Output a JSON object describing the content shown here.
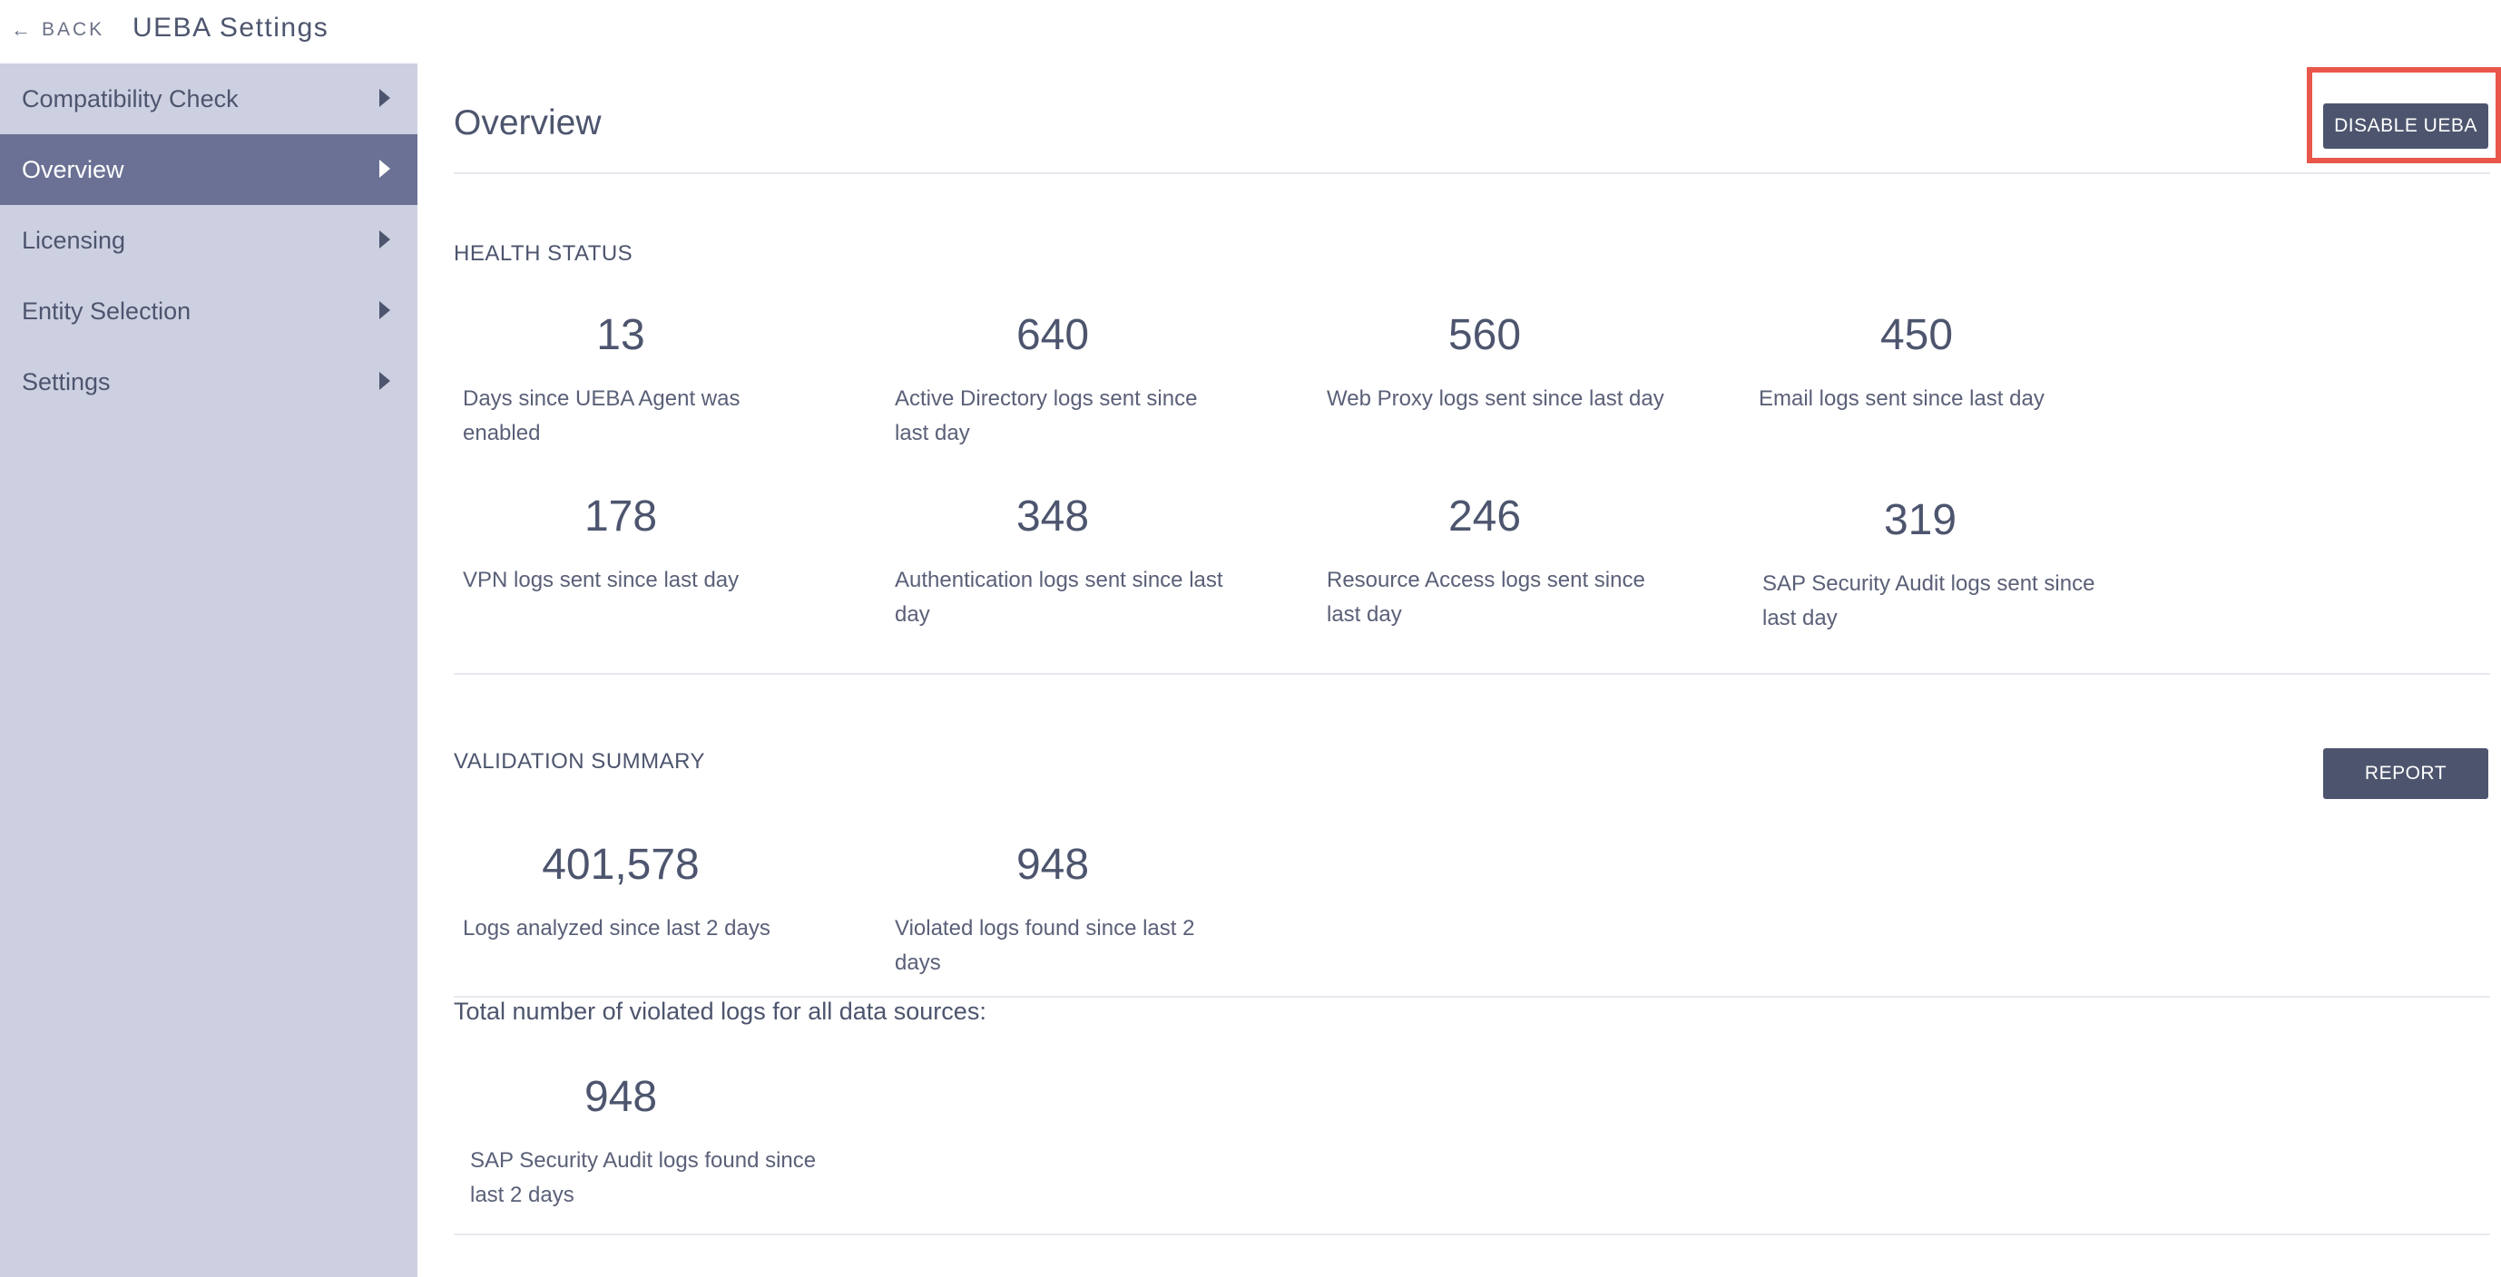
{
  "header": {
    "back_label": "BACK",
    "title": "UEBA Settings"
  },
  "sidebar": {
    "items": [
      {
        "label": "Compatibility Check",
        "active": false
      },
      {
        "label": "Overview",
        "active": true
      },
      {
        "label": "Licensing",
        "active": false
      },
      {
        "label": "Entity Selection",
        "active": false
      },
      {
        "label": "Settings",
        "active": false
      }
    ]
  },
  "main": {
    "page_title": "Overview",
    "disable_button_label": "DISABLE UEBA",
    "highlight_color": "#e9574b",
    "health_status": {
      "title": "HEALTH STATUS",
      "metrics": [
        {
          "value": "13",
          "label": "Days since UEBA Agent was enabled"
        },
        {
          "value": "640",
          "label": "Active Directory logs sent since last day"
        },
        {
          "value": "560",
          "label": "Web Proxy logs sent since last day"
        },
        {
          "value": "450",
          "label": "Email logs sent since last day"
        },
        {
          "value": "178",
          "label": "VPN logs sent since last day"
        },
        {
          "value": "348",
          "label": "Authentication logs sent since last day"
        },
        {
          "value": "246",
          "label": "Resource Access logs sent since last day"
        },
        {
          "value": "319",
          "label": "SAP Security Audit logs sent since last day"
        }
      ]
    },
    "validation_summary": {
      "title": "VALIDATION SUMMARY",
      "report_button_label": "REPORT",
      "metrics": [
        {
          "value": "401,578",
          "label": "Logs analyzed since last 2 days"
        },
        {
          "value": "948",
          "label": "Violated logs found since last 2 days"
        }
      ],
      "total_label": "Total number of violated logs for all data sources:",
      "sources": [
        {
          "value": "948",
          "label": "SAP Security Audit logs found since last 2 days"
        }
      ]
    }
  },
  "colors": {
    "sidebar_bg": "#cdd0e1",
    "sidebar_active_bg": "#6b7194",
    "button_bg": "#4d556e",
    "text": "#4d556e"
  }
}
